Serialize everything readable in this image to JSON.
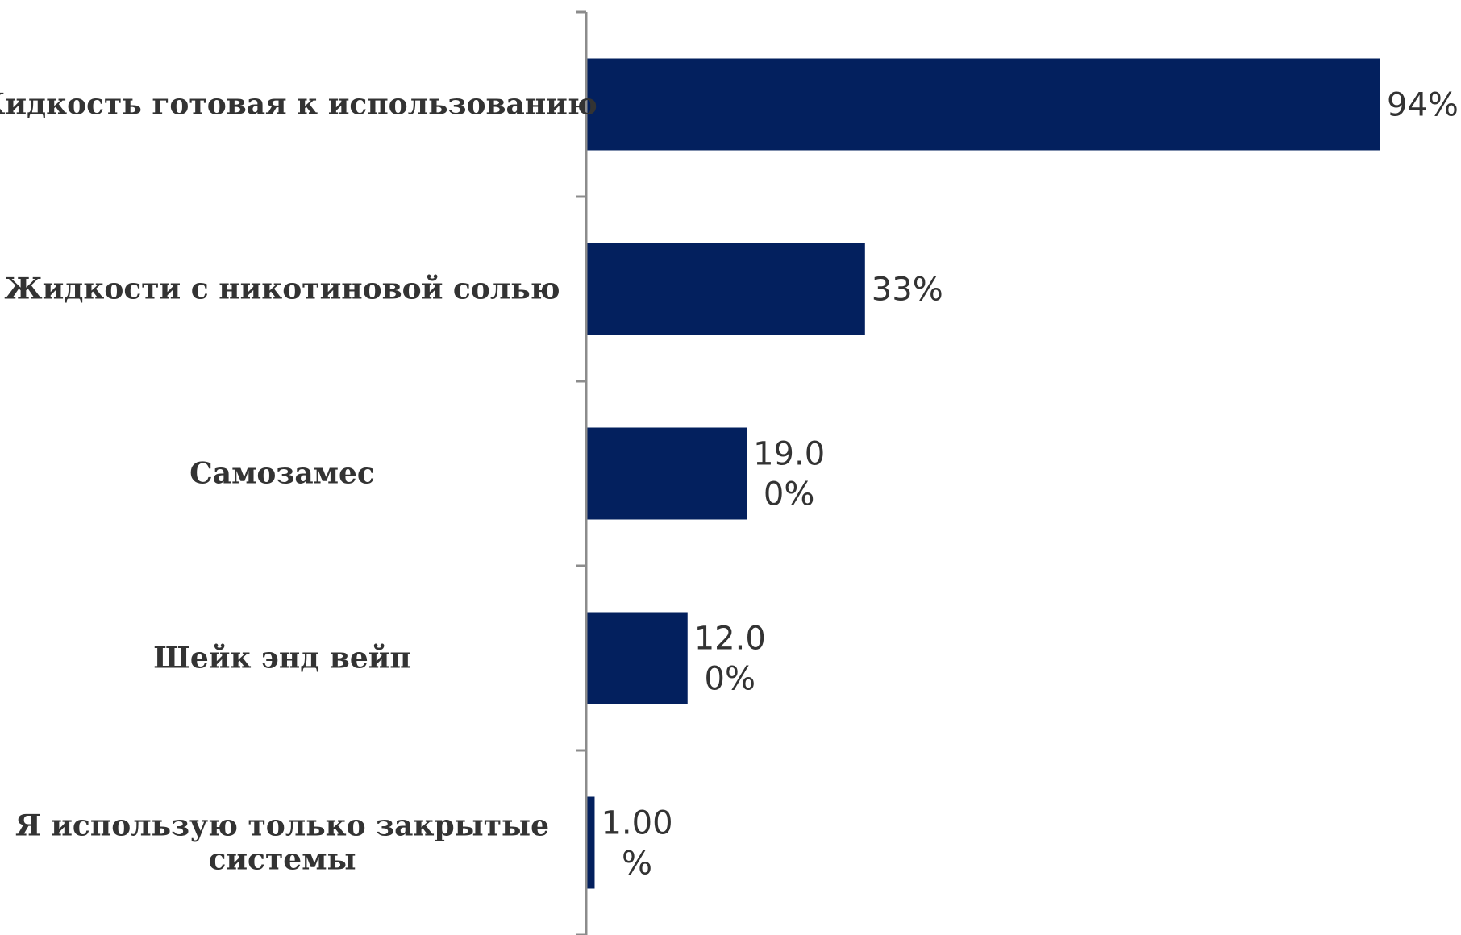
{
  "chart_data": {
    "type": "bar",
    "orientation": "horizontal",
    "categories": [
      "Жидкость готовая к использованию",
      "Жидкости с никотиновой солью",
      "Самозамес",
      "Шейк энд вейп",
      "Я использую только закрытые системы"
    ],
    "category_lines": [
      [
        "Жидкость готовая к использованию"
      ],
      [
        "Жидкости с никотиновой солью"
      ],
      [
        "Самозамес"
      ],
      [
        "Шейк энд вейп"
      ],
      [
        "Я использую только закрытые",
        "системы"
      ]
    ],
    "values": [
      94,
      33,
      19,
      12,
      1
    ],
    "value_labels": [
      [
        "94%"
      ],
      [
        "33%"
      ],
      [
        "19.0",
        "0%"
      ],
      [
        "12.0",
        "0%"
      ],
      [
        "1.00",
        "%"
      ]
    ],
    "xlim": [
      0,
      100
    ],
    "grid": false,
    "bar_color": "#03205e",
    "axis_color": "#8c8c8c"
  }
}
